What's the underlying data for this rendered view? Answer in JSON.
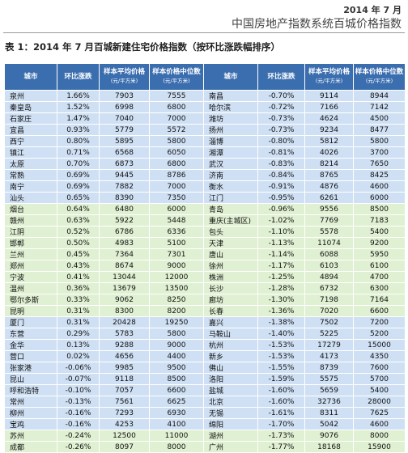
{
  "header": {
    "date": "2014 年 7 月",
    "title": "中国房地产指数系统百城价格指数"
  },
  "table": {
    "caption": "表 1：2014 年 7 月百城新建住宅价格指数（按环比涨跌幅排序）",
    "columns": [
      {
        "label": "城市"
      },
      {
        "label": "环比涨跌"
      },
      {
        "label": "样本平均价格",
        "unit": "(元/平方米)"
      },
      {
        "label": "样本价格中位数",
        "unit": "(元/平方米)"
      },
      {
        "label": "城市"
      },
      {
        "label": "环比涨跌"
      },
      {
        "label": "样本平均价格",
        "unit": "(元/平方米)"
      },
      {
        "label": "样本价格中位数",
        "unit": "(元/平方米)"
      }
    ],
    "rows": [
      [
        "泉州",
        "1.66%",
        "7903",
        "7555",
        "南昌",
        "-0.70%",
        "9114",
        "8944"
      ],
      [
        "秦皇岛",
        "1.52%",
        "6998",
        "6800",
        "哈尔滨",
        "-0.72%",
        "7166",
        "7142"
      ],
      [
        "石家庄",
        "1.47%",
        "7040",
        "7000",
        "潍坊",
        "-0.73%",
        "4624",
        "4500"
      ],
      [
        "宜昌",
        "0.93%",
        "5779",
        "5572",
        "扬州",
        "-0.73%",
        "9234",
        "8477"
      ],
      [
        "西宁",
        "0.80%",
        "5895",
        "5800",
        "淄博",
        "-0.80%",
        "5812",
        "5800"
      ],
      [
        "镇江",
        "0.71%",
        "6568",
        "6050",
        "湘潭",
        "-0.81%",
        "4026",
        "3700"
      ],
      [
        "太原",
        "0.70%",
        "6873",
        "6800",
        "武汉",
        "-0.83%",
        "8214",
        "7650"
      ],
      [
        "常熟",
        "0.69%",
        "9445",
        "8786",
        "济南",
        "-0.84%",
        "8765",
        "8425"
      ],
      [
        "南宁",
        "0.69%",
        "7882",
        "7000",
        "衡水",
        "-0.91%",
        "4876",
        "4600"
      ],
      [
        "汕头",
        "0.65%",
        "8390",
        "7350",
        "江门",
        "-0.95%",
        "6261",
        "6000"
      ],
      [
        "烟台",
        "0.64%",
        "6480",
        "6000",
        "青岛",
        "-0.96%",
        "9556",
        "8500"
      ],
      [
        "赣州",
        "0.63%",
        "5922",
        "5448",
        "重庆(主城区)",
        "-1.02%",
        "7769",
        "7183"
      ],
      [
        "江阴",
        "0.52%",
        "6786",
        "6336",
        "包头",
        "-1.10%",
        "5578",
        "5400"
      ],
      [
        "邯郸",
        "0.50%",
        "4983",
        "5100",
        "天津",
        "-1.13%",
        "11074",
        "9200"
      ],
      [
        "兰州",
        "0.45%",
        "7364",
        "7301",
        "唐山",
        "-1.14%",
        "6088",
        "5950"
      ],
      [
        "郑州",
        "0.43%",
        "8674",
        "9000",
        "徐州",
        "-1.17%",
        "6103",
        "6100"
      ],
      [
        "宁波",
        "0.41%",
        "13044",
        "12000",
        "株洲",
        "-1.25%",
        "4894",
        "4700"
      ],
      [
        "温州",
        "0.36%",
        "13679",
        "13500",
        "长沙",
        "-1.28%",
        "6732",
        "6300"
      ],
      [
        "鄂尔多斯",
        "0.33%",
        "9062",
        "8250",
        "廊坊",
        "-1.30%",
        "7198",
        "7164"
      ],
      [
        "昆明",
        "0.31%",
        "8300",
        "8200",
        "长春",
        "-1.36%",
        "7020",
        "6600"
      ],
      [
        "厦门",
        "0.31%",
        "20428",
        "19250",
        "嘉兴",
        "-1.38%",
        "7502",
        "7200"
      ],
      [
        "东营",
        "0.29%",
        "5783",
        "5800",
        "马鞍山",
        "-1.40%",
        "5225",
        "5200"
      ],
      [
        "金华",
        "0.13%",
        "9288",
        "9000",
        "杭州",
        "-1.53%",
        "17279",
        "15000"
      ],
      [
        "营口",
        "0.02%",
        "4656",
        "4400",
        "新乡",
        "-1.53%",
        "4173",
        "4350"
      ],
      [
        "张家港",
        "-0.06%",
        "9985",
        "9500",
        "佛山",
        "-1.55%",
        "8739",
        "7600"
      ],
      [
        "昆山",
        "-0.07%",
        "9118",
        "8500",
        "洛阳",
        "-1.59%",
        "5575",
        "5700"
      ],
      [
        "呼和浩特",
        "-0.10%",
        "7057",
        "6600",
        "盐城",
        "-1.60%",
        "5659",
        "5400"
      ],
      [
        "常州",
        "-0.13%",
        "7561",
        "6625",
        "北京",
        "-1.60%",
        "32736",
        "28000"
      ],
      [
        "柳州",
        "-0.16%",
        "7293",
        "6930",
        "无锡",
        "-1.61%",
        "8311",
        "7625"
      ],
      [
        "宝鸡",
        "-0.16%",
        "4253",
        "4100",
        "绵阳",
        "-1.70%",
        "5042",
        "4600"
      ],
      [
        "苏州",
        "-0.24%",
        "12500",
        "11000",
        "湖州",
        "-1.73%",
        "9076",
        "8000"
      ],
      [
        "成都",
        "-0.26%",
        "8097",
        "8000",
        "广州",
        "-1.77%",
        "18168",
        "15900"
      ]
    ]
  }
}
